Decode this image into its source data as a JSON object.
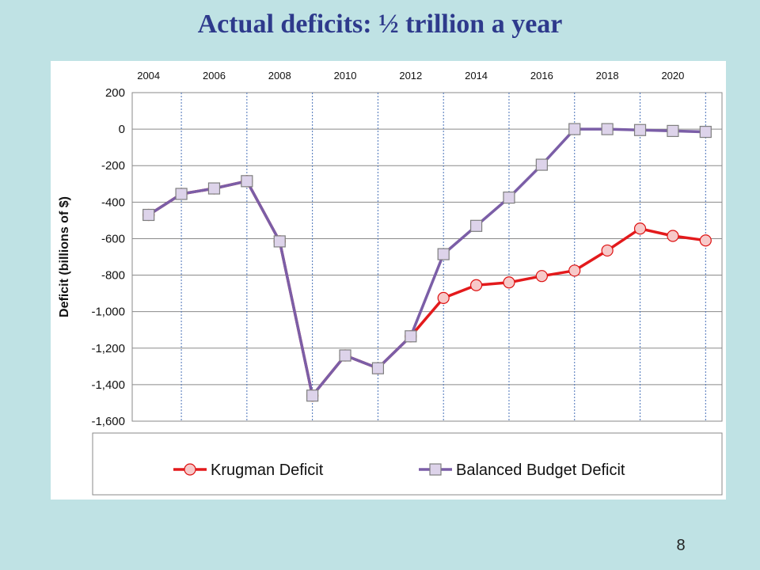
{
  "slide": {
    "title": "Actual deficits: ½ trillion a year",
    "number": "8"
  },
  "chart_data": {
    "type": "line",
    "title": "",
    "xlabel": "",
    "ylabel": "Deficit (billions of $)",
    "x_tick_labels": [
      "2004",
      "2006",
      "2008",
      "2010",
      "2012",
      "2014",
      "2016",
      "2018",
      "2020"
    ],
    "x_tick_positions": [
      2004,
      2006,
      2008,
      2010,
      2012,
      2014,
      2016,
      2018,
      2020
    ],
    "xlim": [
      2003.5,
      2021.5
    ],
    "ylim": [
      -1600,
      200
    ],
    "y_ticks": [
      200,
      0,
      -200,
      -400,
      -600,
      -800,
      -1000,
      -1200,
      -1400,
      -1600
    ],
    "y_tick_labels": [
      "200",
      "0",
      "-200",
      "-400",
      "-600",
      "-800",
      "-1,000",
      "-1,200",
      "-1,400",
      "-1,600"
    ],
    "x_axis_position": "top",
    "grid": true,
    "legend_position": "bottom",
    "x": [
      2004,
      2005,
      2006,
      2007,
      2008,
      2009,
      2010,
      2011,
      2012,
      2013,
      2014,
      2015,
      2016,
      2017,
      2018,
      2019,
      2020,
      2021
    ],
    "series": [
      {
        "name": "Krugman Deficit",
        "color": "#e31a1c",
        "marker": "circle",
        "values": [
          -470,
          -355,
          -325,
          -285,
          -615,
          -1460,
          -1240,
          -1310,
          -1135,
          -925,
          -855,
          -840,
          -805,
          -775,
          -665,
          -545,
          -585,
          -610
        ]
      },
      {
        "name": "Balanced Budget Deficit",
        "color": "#7b5ea7",
        "marker": "square",
        "values": [
          -470,
          -355,
          -325,
          -285,
          -615,
          -1460,
          -1240,
          -1310,
          -1135,
          -685,
          -530,
          -375,
          -195,
          0,
          0,
          -5,
          -10,
          -15
        ]
      }
    ]
  }
}
